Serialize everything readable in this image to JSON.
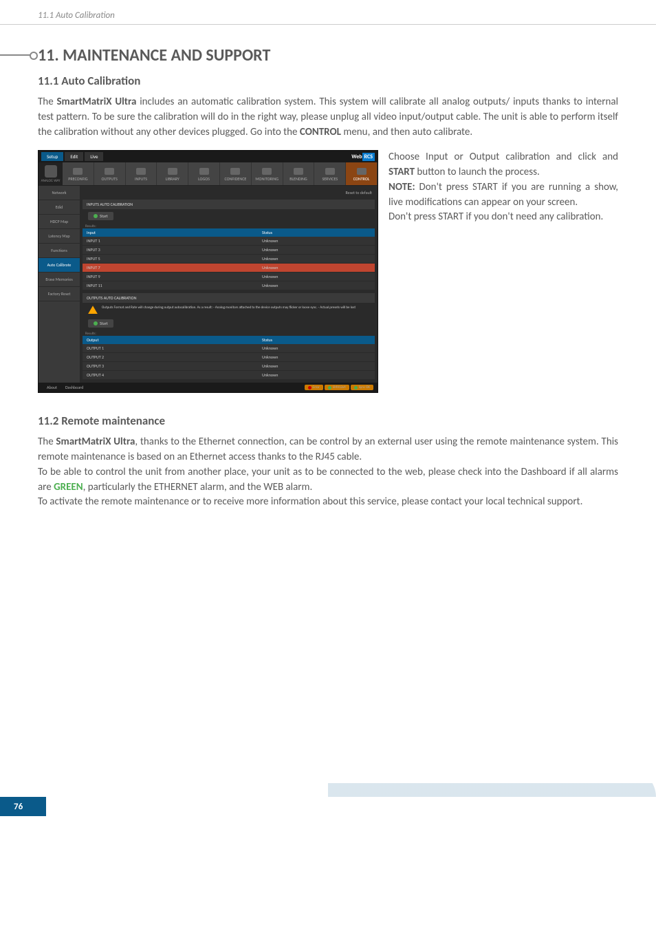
{
  "page": {
    "header_title": "11.1 Auto Calibration",
    "number": "76"
  },
  "section": {
    "heading": "11. MAINTENANCE AND SUPPORT"
  },
  "sub1": {
    "heading": "11.1 Auto Calibration",
    "para_pre": "The ",
    "product": "SmartMatriX Ultra",
    "para_mid1": " includes an automatic calibration system. This system will calibrate all analog outputs/ inputs thanks to internal test pattern. To be sure the calibration will do in the right way, please unplug all video input/output cable. The unit is able to perform itself the calibration without any other devices plugged. Go into the ",
    "menu": "CONTROL",
    "para_end": " menu, and then auto calibrate.",
    "side_p1a": "Choose Input or Output calibration and click and ",
    "start": "START",
    "side_p1b": " button to launch the process.",
    "note_label": "NOTE:",
    "note_text": " Don't press START if you are running a show, live modifications can appear on your screen.",
    "side_p3": "Don't press START if you don't need any calibration."
  },
  "sub2": {
    "heading": "11.2 Remote maintenance",
    "p1a": "The ",
    "product": "SmartMatriX Ultra",
    "p1b": ", thanks to the Ethernet connection, can be control by an external user using the remote maintenance system. This remote maintenance is based on an Ethernet access thanks to the RJ45 cable.",
    "p2a": "To be able to control the unit from another place, your unit as to be connected to the web, please check into the Dashboard if all alarms are ",
    "green": "GREEN",
    "p2b": ", particularly the ETHERNET alarm, and the WEB alarm.",
    "p3": "To activate the remote maintenance or to receive more information about this service, please contact your local technical support."
  },
  "screenshot": {
    "colors": {
      "bg": "#2a2a2a",
      "titlebar": "#1a1a1a",
      "primary": "#0a5a8a",
      "active_tab": "#8b4513",
      "highlight_row": "#c04530"
    },
    "titlebar": {
      "modes": [
        "Setup",
        "Edit",
        "Live"
      ],
      "brand_web": "Web ",
      "brand_rcs": "RCS"
    },
    "logo": "ANALOG WAY",
    "nav": [
      {
        "label": "PRECONFIG"
      },
      {
        "label": "OUTPUTS"
      },
      {
        "label": "INPUTS"
      },
      {
        "label": "LIBRARY"
      },
      {
        "label": "LOGOS"
      },
      {
        "label": "CONFIDENCE"
      },
      {
        "label": "MONITORING"
      },
      {
        "label": "BLENDING"
      },
      {
        "label": "SERVICES"
      },
      {
        "label": "CONTROL"
      }
    ],
    "sidebar": [
      {
        "label": "Network"
      },
      {
        "label": "Edid"
      },
      {
        "label": "HDCP Map"
      },
      {
        "label": "Latency Map"
      },
      {
        "label": "Functions"
      },
      {
        "label": "Auto Calibrate"
      },
      {
        "label": "Erase Memories"
      },
      {
        "label": "Factory Reset"
      }
    ],
    "reset_link": "Reset to default",
    "inputs_section": "INPUTS AUTO CALIBRATION",
    "outputs_section": "OUTPUTS AUTO CALIBRATION",
    "start_btn": "Start",
    "results_label": "Results:",
    "table_headers": {
      "col1_in": "Input",
      "col1_out": "Output",
      "col2": "Status"
    },
    "inputs_rows": [
      {
        "name": "INPUT 1",
        "status": "Unknown",
        "hl": false
      },
      {
        "name": "INPUT 3",
        "status": "Unknown",
        "hl": false
      },
      {
        "name": "INPUT 5",
        "status": "Unknown",
        "hl": false
      },
      {
        "name": "INPUT 7",
        "status": "Unknown",
        "hl": true
      },
      {
        "name": "INPUT 9",
        "status": "Unknown",
        "hl": false
      },
      {
        "name": "INPUT 11",
        "status": "Unknown",
        "hl": false
      }
    ],
    "outputs_rows": [
      {
        "name": "OUTPUT 1",
        "status": "Unknown"
      },
      {
        "name": "OUTPUT 2",
        "status": "Unknown"
      },
      {
        "name": "OUTPUT 3",
        "status": "Unknown"
      },
      {
        "name": "OUTPUT 4",
        "status": "Unknown"
      }
    ],
    "warning": "Outputs Format and Rate will change during output autocalibration. As a result:\n- Analog monitors attached to the device outputs may flicker or loose sync.\n- Actual presets will be lost",
    "footer": {
      "about": "About",
      "dashboard": "Dashboard",
      "status": [
        {
          "label": "Error",
          "color": "sd-red",
          "bg": "sp-orange"
        },
        {
          "label": "SMX12x4",
          "color": "sd-green",
          "bg": "sp-orange"
        },
        {
          "label": "Sync OK",
          "color": "sd-green",
          "bg": "sp-orange"
        }
      ]
    }
  }
}
